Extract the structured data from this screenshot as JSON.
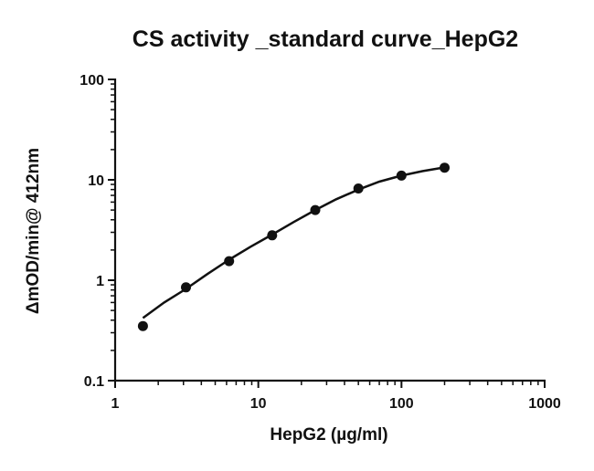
{
  "chart_data": {
    "type": "scatter",
    "title": "CS activity _standard curve_HepG2",
    "xlabel": "HepG2 (µg/ml)",
    "ylabel": "ΔmOD/min@ 412nm",
    "x_scale": "log",
    "y_scale": "log",
    "xlim": [
      1,
      1000
    ],
    "ylim": [
      0.1,
      100
    ],
    "x_ticks": [
      1,
      10,
      100,
      1000
    ],
    "x_tick_labels": [
      "1",
      "10",
      "100",
      "1000"
    ],
    "y_ticks": [
      0.1,
      1,
      10,
      100
    ],
    "y_tick_labels": [
      "0.1",
      "1",
      "10",
      "100"
    ],
    "grid": false,
    "legend": "none",
    "series": [
      {
        "type": "points",
        "x": [
          1.5625,
          3.125,
          6.25,
          12.5,
          25,
          50,
          100,
          200
        ],
        "y": [
          0.35,
          0.85,
          1.55,
          2.8,
          5.0,
          8.2,
          11.0,
          13.2
        ]
      },
      {
        "type": "fit-line",
        "x": [
          1.5625,
          2.2,
          3.125,
          4.4,
          6.25,
          8.8,
          12.5,
          17.7,
          25,
          35,
          50,
          70,
          100,
          140,
          200
        ],
        "y": [
          0.42,
          0.6,
          0.82,
          1.15,
          1.6,
          2.15,
          2.85,
          3.8,
          5.0,
          6.4,
          8.0,
          9.6,
          11.0,
          12.2,
          13.3
        ]
      }
    ],
    "colors": {
      "ink": "#111111",
      "background": "#ffffff"
    }
  }
}
